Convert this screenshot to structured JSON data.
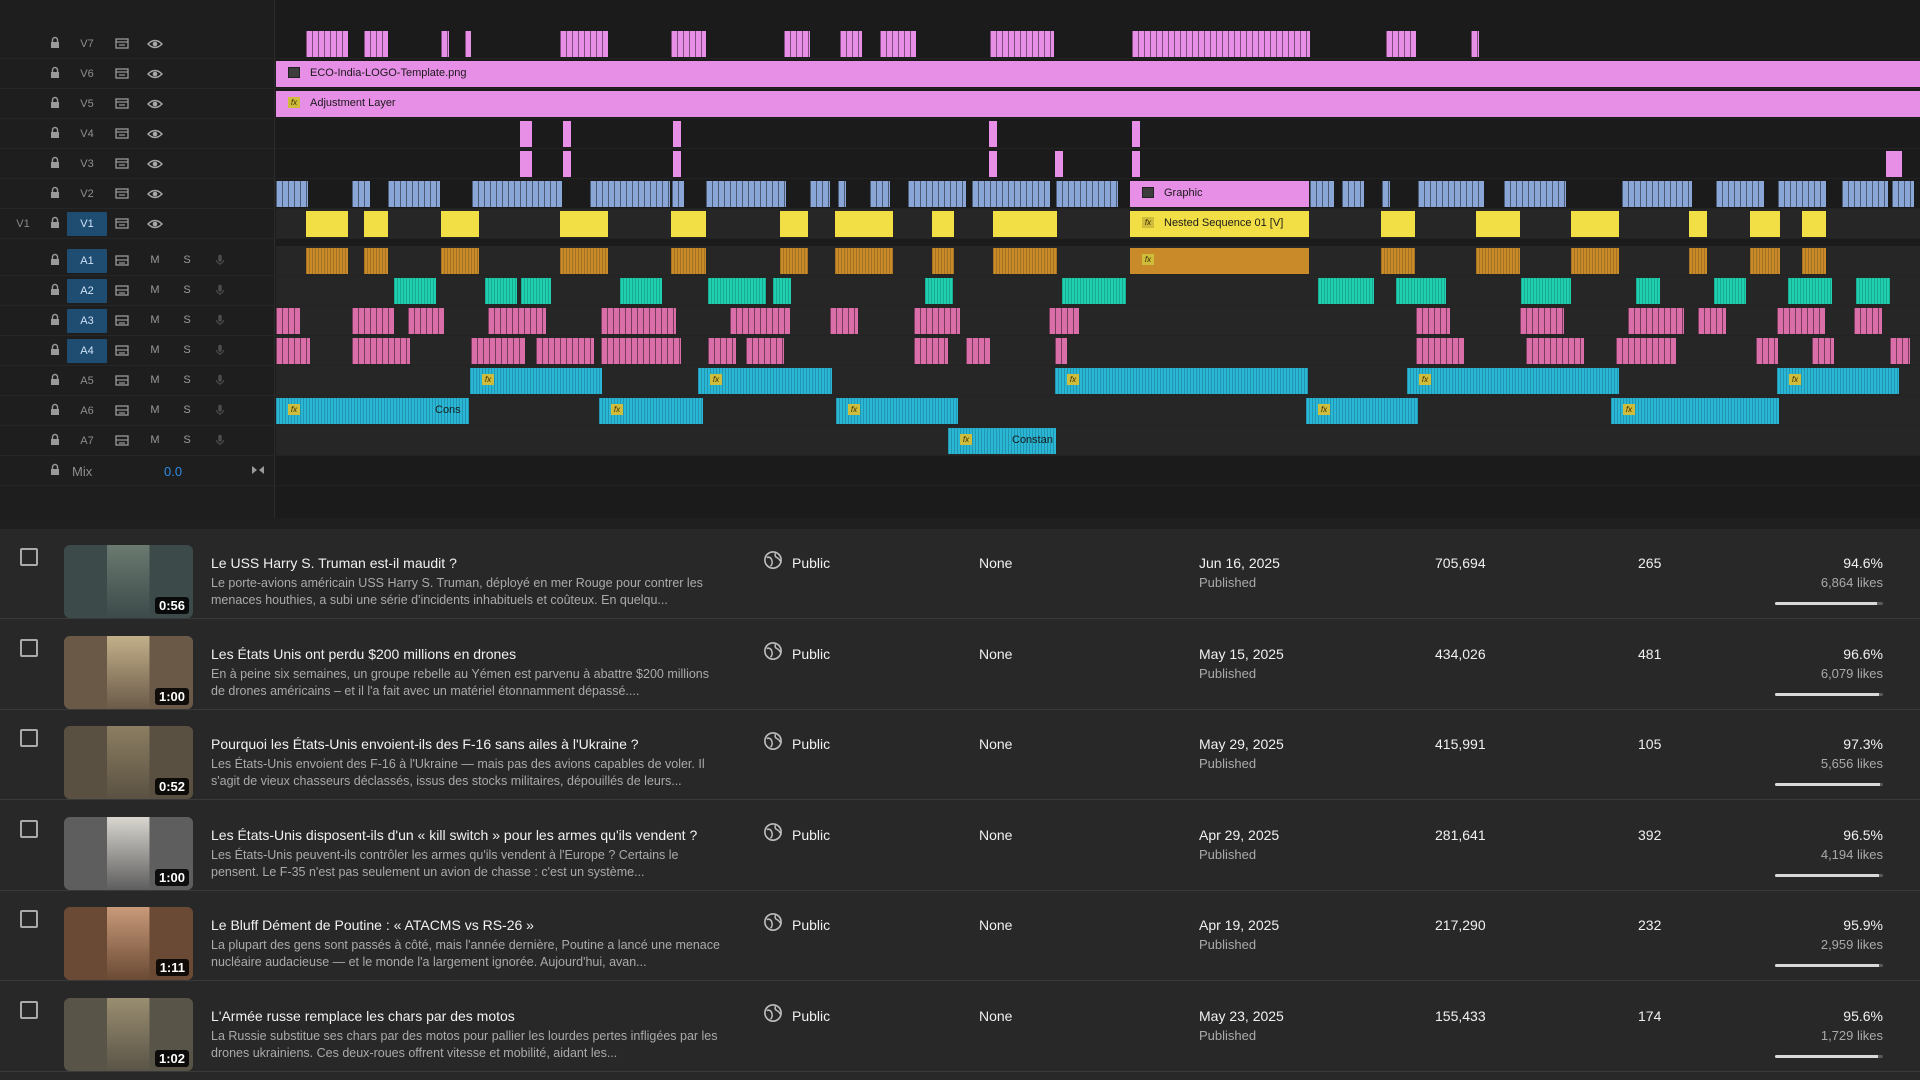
{
  "timeline": {
    "source_label": "V1",
    "video_tracks": [
      "V7",
      "V6",
      "V5",
      "V4",
      "V3",
      "V2",
      "V1"
    ],
    "audio_tracks": [
      "A1",
      "A2",
      "A3",
      "A4",
      "A5",
      "A6",
      "A7"
    ],
    "mute_label": "M",
    "solo_label": "S",
    "mix_label": "Mix",
    "mix_value": "0.0",
    "clips": {
      "logo": "ECO-India-LOGO-Template.png",
      "adjustment": "Adjustment Layer",
      "graphic": "Graphic",
      "nested": "Nested Sequence 01 [V]",
      "constant_short": "Cons",
      "constant_full": "Constan"
    },
    "colors": {
      "pink_layer": "#e78ee6",
      "video_blue": "#8aa6d7",
      "video_yellow": "#f2df45",
      "audio_orange": "#c98b2a",
      "audio_teal": "#1fd0b0",
      "audio_pink": "#d96ea8",
      "audio_cyan": "#2ab7d6",
      "selected_track": "#1f4d72"
    }
  },
  "videos": [
    {
      "title": "Le USS Harry S. Truman est-il maudit ?",
      "description": "Le porte-avions américain USS Harry S. Truman, déployé en mer Rouge pour contrer les menaces houthies, a subi une série d'incidents inhabituels et coûteux. En quelqu...",
      "duration": "0:56",
      "visibility": "Public",
      "restrictions": "None",
      "date": "Jun 16, 2025",
      "status": "Published",
      "views": "705,694",
      "comments": "265",
      "like_ratio": "94.6%",
      "likes": "6,864 likes",
      "like_fraction": 0.946,
      "thumb_colors": [
        "#3c4a4a",
        "#6b7a70"
      ]
    },
    {
      "title": "Les États Unis ont perdu $200 millions en drones",
      "description": "En à peine six semaines, un groupe rebelle au Yémen est parvenu à abattre $200 millions de drones américains – et il l'a fait avec un matériel étonnamment dépassé....",
      "duration": "1:00",
      "visibility": "Public",
      "restrictions": "None",
      "date": "May 15, 2025",
      "status": "Published",
      "views": "434,026",
      "comments": "481",
      "like_ratio": "96.6%",
      "likes": "6,079 likes",
      "like_fraction": 0.966,
      "thumb_colors": [
        "#6b5a48",
        "#c2b08a"
      ]
    },
    {
      "title": "Pourquoi les États-Unis envoient-ils des F-16 sans ailes à l'Ukraine ?",
      "description": "Les États-Unis envoient des F-16 à l'Ukraine — mais pas des avions capables de voler. Il s'agit de vieux chasseurs déclassés, issus des stocks militaires, dépouillés de leurs...",
      "duration": "0:52",
      "visibility": "Public",
      "restrictions": "None",
      "date": "May 29, 2025",
      "status": "Published",
      "views": "415,991",
      "comments": "105",
      "like_ratio": "97.3%",
      "likes": "5,656 likes",
      "like_fraction": 0.973,
      "thumb_colors": [
        "#5a5142",
        "#8c7e62"
      ]
    },
    {
      "title": "Les États-Unis disposent-ils d'un « kill switch » pour les armes qu'ils vendent ?",
      "description": "Les États-Unis peuvent-ils contrôler les armes qu'ils vendent à l'Europe ? Certains le pensent. Le F-35 n'est pas seulement un avion de chasse : c'est un système...",
      "duration": "1:00",
      "visibility": "Public",
      "restrictions": "None",
      "date": "Apr 29, 2025",
      "status": "Published",
      "views": "281,641",
      "comments": "392",
      "like_ratio": "96.5%",
      "likes": "4,194 likes",
      "like_fraction": 0.965,
      "thumb_colors": [
        "#5e5e5e",
        "#d9d6cf"
      ]
    },
    {
      "title": "Le Bluff Dément de Poutine : « ATACMS vs RS-26 »",
      "description": "La plupart des gens sont passés à côté, mais l'année dernière, Poutine a lancé une menace nucléaire audacieuse — et le monde l'a largement ignorée. Aujourd'hui, avan...",
      "duration": "1:11",
      "visibility": "Public",
      "restrictions": "None",
      "date": "Apr 19, 2025",
      "status": "Published",
      "views": "217,290",
      "comments": "232",
      "like_ratio": "95.9%",
      "likes": "2,959 likes",
      "like_fraction": 0.959,
      "thumb_colors": [
        "#6a4a34",
        "#c99a7a"
      ]
    },
    {
      "title": "L'Armée russe remplace les chars par des motos",
      "description": "La Russie substitue ses chars par des motos pour pallier les lourdes pertes infligées par les drones ukrainiens. Ces deux-roues offrent vitesse et mobilité, aidant les...",
      "duration": "1:02",
      "visibility": "Public",
      "restrictions": "None",
      "date": "May 23, 2025",
      "status": "Published",
      "views": "155,433",
      "comments": "174",
      "like_ratio": "95.6%",
      "likes": "1,729 likes",
      "like_fraction": 0.956,
      "thumb_colors": [
        "#5a5448",
        "#9a8e70"
      ]
    }
  ]
}
